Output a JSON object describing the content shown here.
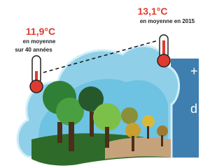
{
  "left_thermometer": {
    "temperature": "11,9°C",
    "caption_line_1": "en moyenne",
    "caption_line_2": "sur 40 années"
  },
  "right_thermometer": {
    "temperature": "13,1°C",
    "caption": "en moyenne en 2015"
  },
  "panel": {
    "text_1": "+",
    "text_2": "d"
  }
}
